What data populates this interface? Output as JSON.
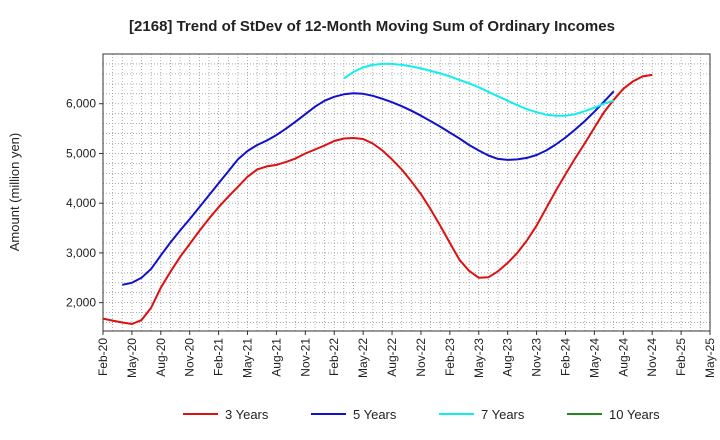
{
  "chart_data": {
    "type": "line",
    "title": "[2168]  Trend of StDev of 12-Month Moving Sum of Ordinary Incomes",
    "xlabel": "",
    "ylabel": "Amount (million yen)",
    "x_index_note": "x values are months since Feb-20 (0 = Feb-20)",
    "xlim": [
      0,
      63
    ],
    "ylim": [
      1430,
      7000
    ],
    "x_ticks": [
      {
        "x": 0,
        "label": "Feb-20"
      },
      {
        "x": 3,
        "label": "May-20"
      },
      {
        "x": 6,
        "label": "Aug-20"
      },
      {
        "x": 9,
        "label": "Nov-20"
      },
      {
        "x": 12,
        "label": "Feb-21"
      },
      {
        "x": 15,
        "label": "May-21"
      },
      {
        "x": 18,
        "label": "Aug-21"
      },
      {
        "x": 21,
        "label": "Nov-21"
      },
      {
        "x": 24,
        "label": "Feb-22"
      },
      {
        "x": 27,
        "label": "May-22"
      },
      {
        "x": 30,
        "label": "Aug-22"
      },
      {
        "x": 33,
        "label": "Nov-22"
      },
      {
        "x": 36,
        "label": "Feb-23"
      },
      {
        "x": 39,
        "label": "May-23"
      },
      {
        "x": 42,
        "label": "Aug-23"
      },
      {
        "x": 45,
        "label": "Nov-23"
      },
      {
        "x": 48,
        "label": "Feb-24"
      },
      {
        "x": 51,
        "label": "May-24"
      },
      {
        "x": 54,
        "label": "Aug-24"
      },
      {
        "x": 57,
        "label": "Nov-24"
      },
      {
        "x": 60,
        "label": "Feb-25"
      },
      {
        "x": 63,
        "label": "May-25"
      }
    ],
    "y_ticks": [
      {
        "y": 2000,
        "label": "2,000"
      },
      {
        "y": 3000,
        "label": "3,000"
      },
      {
        "y": 4000,
        "label": "4,000"
      },
      {
        "y": 5000,
        "label": "5,000"
      },
      {
        "y": 6000,
        "label": "6,000"
      }
    ],
    "grid": true,
    "legend_position": "bottom",
    "series": [
      {
        "name": "3 Years",
        "color": "#dd1111",
        "points": [
          [
            0,
            1680
          ],
          [
            1,
            1640
          ],
          [
            2,
            1600
          ],
          [
            3,
            1570
          ],
          [
            4,
            1650
          ],
          [
            5,
            1900
          ],
          [
            6,
            2300
          ],
          [
            7,
            2620
          ],
          [
            8,
            2920
          ],
          [
            9,
            3180
          ],
          [
            10,
            3440
          ],
          [
            11,
            3690
          ],
          [
            12,
            3920
          ],
          [
            13,
            4130
          ],
          [
            14,
            4330
          ],
          [
            15,
            4530
          ],
          [
            16,
            4680
          ],
          [
            17,
            4740
          ],
          [
            18,
            4770
          ],
          [
            19,
            4830
          ],
          [
            20,
            4900
          ],
          [
            21,
            5000
          ],
          [
            22,
            5080
          ],
          [
            23,
            5160
          ],
          [
            24,
            5250
          ],
          [
            25,
            5300
          ],
          [
            26,
            5310
          ],
          [
            27,
            5290
          ],
          [
            28,
            5200
          ],
          [
            29,
            5060
          ],
          [
            30,
            4880
          ],
          [
            31,
            4680
          ],
          [
            32,
            4440
          ],
          [
            33,
            4180
          ],
          [
            34,
            3880
          ],
          [
            35,
            3550
          ],
          [
            36,
            3200
          ],
          [
            37,
            2860
          ],
          [
            38,
            2640
          ],
          [
            39,
            2500
          ],
          [
            40,
            2510
          ],
          [
            41,
            2630
          ],
          [
            42,
            2800
          ],
          [
            43,
            3000
          ],
          [
            44,
            3250
          ],
          [
            45,
            3550
          ],
          [
            46,
            3900
          ],
          [
            47,
            4250
          ],
          [
            48,
            4580
          ],
          [
            49,
            4900
          ],
          [
            50,
            5200
          ],
          [
            51,
            5520
          ],
          [
            52,
            5830
          ],
          [
            53,
            6080
          ],
          [
            54,
            6300
          ],
          [
            55,
            6450
          ],
          [
            56,
            6550
          ],
          [
            57,
            6580
          ]
        ]
      },
      {
        "name": "5 Years",
        "color": "#1111cc",
        "points": [
          [
            2,
            2360
          ],
          [
            3,
            2400
          ],
          [
            4,
            2500
          ],
          [
            5,
            2680
          ],
          [
            6,
            2950
          ],
          [
            7,
            3210
          ],
          [
            8,
            3450
          ],
          [
            9,
            3680
          ],
          [
            10,
            3920
          ],
          [
            11,
            4160
          ],
          [
            12,
            4400
          ],
          [
            13,
            4640
          ],
          [
            14,
            4880
          ],
          [
            15,
            5050
          ],
          [
            16,
            5170
          ],
          [
            17,
            5260
          ],
          [
            18,
            5370
          ],
          [
            19,
            5500
          ],
          [
            20,
            5640
          ],
          [
            21,
            5790
          ],
          [
            22,
            5940
          ],
          [
            23,
            6060
          ],
          [
            24,
            6140
          ],
          [
            25,
            6190
          ],
          [
            26,
            6210
          ],
          [
            27,
            6200
          ],
          [
            28,
            6160
          ],
          [
            29,
            6100
          ],
          [
            30,
            6030
          ],
          [
            31,
            5950
          ],
          [
            32,
            5860
          ],
          [
            33,
            5760
          ],
          [
            34,
            5650
          ],
          [
            35,
            5540
          ],
          [
            36,
            5420
          ],
          [
            37,
            5300
          ],
          [
            38,
            5170
          ],
          [
            39,
            5060
          ],
          [
            40,
            4960
          ],
          [
            41,
            4890
          ],
          [
            42,
            4870
          ],
          [
            43,
            4880
          ],
          [
            44,
            4910
          ],
          [
            45,
            4970
          ],
          [
            46,
            5060
          ],
          [
            47,
            5180
          ],
          [
            48,
            5320
          ],
          [
            49,
            5480
          ],
          [
            50,
            5650
          ],
          [
            51,
            5840
          ],
          [
            52,
            6040
          ],
          [
            53,
            6250
          ]
        ]
      },
      {
        "name": "7 Years",
        "color": "#11eeee",
        "points": [
          [
            25,
            6510
          ],
          [
            26,
            6640
          ],
          [
            27,
            6730
          ],
          [
            28,
            6780
          ],
          [
            29,
            6800
          ],
          [
            30,
            6800
          ],
          [
            31,
            6780
          ],
          [
            32,
            6750
          ],
          [
            33,
            6710
          ],
          [
            34,
            6660
          ],
          [
            35,
            6610
          ],
          [
            36,
            6550
          ],
          [
            37,
            6480
          ],
          [
            38,
            6410
          ],
          [
            39,
            6330
          ],
          [
            40,
            6240
          ],
          [
            41,
            6150
          ],
          [
            42,
            6060
          ],
          [
            43,
            5970
          ],
          [
            44,
            5890
          ],
          [
            45,
            5830
          ],
          [
            46,
            5780
          ],
          [
            47,
            5760
          ],
          [
            48,
            5760
          ],
          [
            49,
            5790
          ],
          [
            50,
            5850
          ],
          [
            51,
            5920
          ],
          [
            52,
            6000
          ],
          [
            53,
            6060
          ]
        ]
      },
      {
        "name": "10 Years",
        "color": "#228822",
        "points": []
      }
    ]
  }
}
